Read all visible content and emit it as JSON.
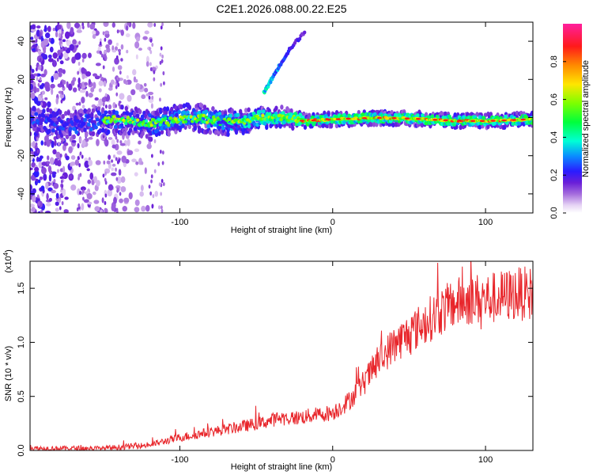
{
  "chart_data": [
    {
      "type": "heatmap",
      "title": "C2E1.2026.088.00.22.E25",
      "xlabel": "Height of straight line (km)",
      "ylabel": "Frequency (Hz)",
      "xlim": [
        -198,
        131
      ],
      "ylim": [
        -50,
        50
      ],
      "xticks": [
        -100,
        0,
        100
      ],
      "yticks": [
        -40,
        -20,
        0,
        20,
        40
      ],
      "colorbar": {
        "label": "Normalized spectral amplitude",
        "range": [
          0,
          1
        ],
        "ticks": [
          0.0,
          0.2,
          0.4,
          0.6,
          0.8
        ]
      },
      "features": {
        "carrier_frequency_hz": 0,
        "sideband_branch": [
          {
            "x": -45,
            "y": 13
          },
          {
            "x": -40,
            "y": 20
          },
          {
            "x": -35,
            "y": 27
          },
          {
            "x": -28,
            "y": 36
          },
          {
            "x": -18,
            "y": 45
          }
        ],
        "noise_region_x": [
          -198,
          -115
        ]
      }
    },
    {
      "type": "line",
      "title": "",
      "xlabel": "Height of straight line (km)",
      "ylabel": "SNR (10 * v/v)",
      "y_multiplier": "(x10",
      "y_multiplier_exponent": "4",
      "y_multiplier_close": ")",
      "xlim": [
        -198,
        131
      ],
      "ylim": [
        0,
        1.75
      ],
      "xticks": [
        -100,
        0,
        100
      ],
      "yticks": [
        0.0,
        0.5,
        1.0,
        1.5
      ],
      "series": [
        {
          "name": "SNR",
          "color": "#e8262b",
          "trend": {
            "x": [
              -198,
              -150,
              -120,
              -100,
              -80,
              -60,
              -45,
              -35,
              -25,
              -15,
              0,
              10,
              20,
              30,
              40,
              50,
              60,
              70,
              80,
              90,
              100,
              110,
              120,
              131
            ],
            "y": [
              0.02,
              0.02,
              0.05,
              0.12,
              0.17,
              0.22,
              0.26,
              0.3,
              0.3,
              0.32,
              0.35,
              0.45,
              0.62,
              0.82,
              0.98,
              1.08,
              1.18,
              1.28,
              1.36,
              1.4,
              1.4,
              1.42,
              1.45,
              1.45
            ]
          }
        }
      ]
    }
  ]
}
